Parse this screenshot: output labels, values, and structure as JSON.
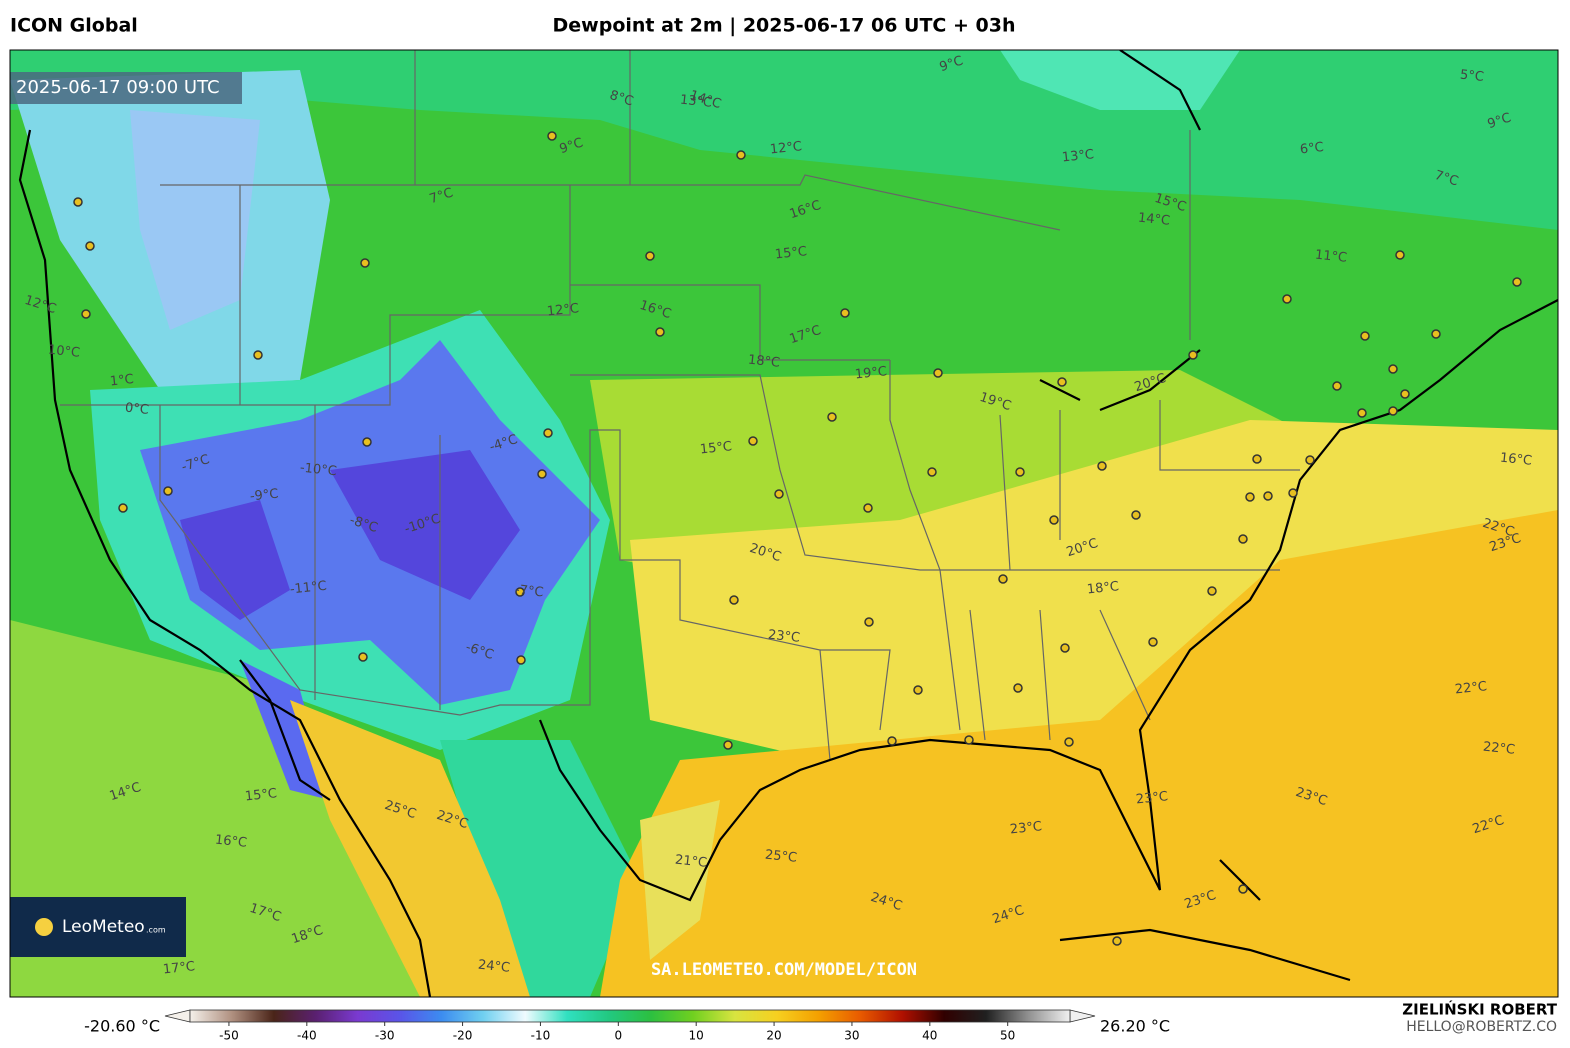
{
  "header": {
    "model": "ICON Global",
    "title": "Dewpoint at 2m | 2025-06-17 06 UTC + 03h"
  },
  "map": {
    "timestamp": "2025-06-17 09:00 UTC",
    "logo": {
      "name": "LeoMeteo",
      "suffix": ".com"
    },
    "watermark": "SA.LEOMETEO.COM/MODEL/ICON",
    "labels": [
      "9°C",
      "12°C",
      "13°C",
      "14°C",
      "9°C",
      "13°C",
      "14°C",
      "15°C",
      "16°C",
      "15°C",
      "11°C",
      "8°C",
      "7°C",
      "6°C",
      "5°C",
      "7°C",
      "9°C",
      "12°C",
      "10°C",
      "12°C",
      "-7°C",
      "-9°C",
      "-10°C",
      "-8°C",
      "-10°C",
      "-11°C",
      "-7°C",
      "-6°C",
      "-4°C",
      "1°C",
      "0°C",
      "16°C",
      "17°C",
      "19°C",
      "18°C",
      "19°C",
      "20°C",
      "15°C",
      "16°C",
      "20°C",
      "20°C",
      "18°C",
      "23°C",
      "22°C",
      "23°C",
      "22°C",
      "22°C",
      "23°C",
      "22°C",
      "23°C",
      "25°C",
      "24°C",
      "24°C",
      "23°C",
      "21°C",
      "22°C",
      "14°C",
      "15°C",
      "16°C",
      "17°C",
      "18°C",
      "17°C",
      "24°C",
      "25°C",
      "23°C"
    ]
  },
  "colorbar": {
    "min_label": "-20.60 °C",
    "max_label": "26.20 °C",
    "lim": [
      -55,
      58
    ],
    "ticks": [
      -50,
      -40,
      -30,
      -20,
      -10,
      0,
      10,
      20,
      30,
      40,
      50
    ],
    "colors": [
      "#f4f0ea",
      "#b09080",
      "#4a2418",
      "#5a2070",
      "#7a3ad0",
      "#5a54e8",
      "#3c8cf0",
      "#70d0f0",
      "#f0fbff",
      "#30e0c0",
      "#22c880",
      "#2cc040",
      "#70d020",
      "#d8e440",
      "#f6d020",
      "#f4a000",
      "#e85a00",
      "#b01000",
      "#300000",
      "#202020",
      "#909090",
      "#f0f0f0"
    ]
  },
  "footer": {
    "author": "ZIELIŃSKI ROBERT",
    "email": "HELLO@ROBERTZ.CO"
  }
}
